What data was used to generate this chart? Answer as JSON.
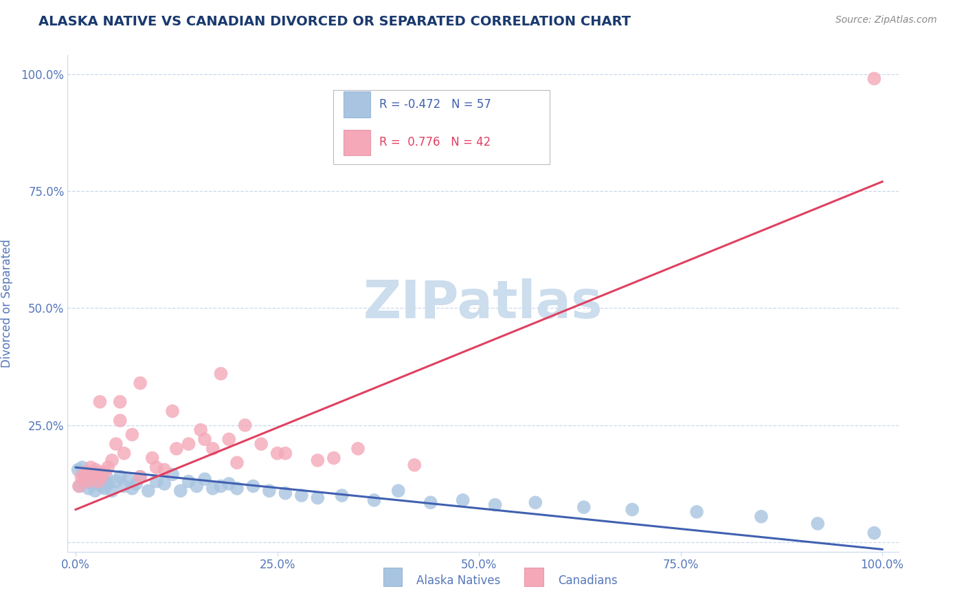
{
  "title": "ALASKA NATIVE VS CANADIAN DIVORCED OR SEPARATED CORRELATION CHART",
  "source_text": "Source: ZipAtlas.com",
  "ylabel": "Divorced or Separated",
  "x_tick_vals": [
    0,
    25,
    50,
    75,
    100
  ],
  "y_tick_vals": [
    0,
    25,
    50,
    75,
    100
  ],
  "x_tick_labels": [
    "0.0%",
    "25.0%",
    "50.0%",
    "75.0%",
    "100.0%"
  ],
  "y_tick_labels": [
    "",
    "25.0%",
    "50.0%",
    "75.0%",
    "100.0%"
  ],
  "xlim": [
    -1,
    102
  ],
  "ylim": [
    -2,
    104
  ],
  "legend_labels": [
    "Alaska Natives",
    "Canadians"
  ],
  "blue_color": "#a8c4e0",
  "pink_color": "#f4a8b8",
  "blue_line_color": "#4060b0",
  "pink_line_color": "#e04060",
  "watermark": "ZIPatlas",
  "r_blue": -0.472,
  "n_blue": 57,
  "r_pink": 0.776,
  "n_pink": 42,
  "blue_scatter_x": [
    0.3,
    0.5,
    0.8,
    1.0,
    1.2,
    1.4,
    1.6,
    1.8,
    2.0,
    2.2,
    2.4,
    2.6,
    2.8,
    3.0,
    3.2,
    3.4,
    3.6,
    3.8,
    4.0,
    4.5,
    5.0,
    5.5,
    6.0,
    6.5,
    7.0,
    7.5,
    8.0,
    9.0,
    10.0,
    11.0,
    12.0,
    13.0,
    14.0,
    15.0,
    16.0,
    17.0,
    18.0,
    19.0,
    20.0,
    22.0,
    24.0,
    26.0,
    28.0,
    30.0,
    33.0,
    37.0,
    40.0,
    44.0,
    48.0,
    52.0,
    57.0,
    63.0,
    69.0,
    77.0,
    85.0,
    92.0,
    99.0
  ],
  "blue_scatter_y": [
    15.5,
    12.0,
    16.0,
    14.0,
    13.0,
    15.0,
    11.5,
    14.5,
    12.5,
    13.5,
    11.0,
    15.0,
    13.0,
    14.0,
    12.0,
    13.5,
    11.5,
    14.0,
    12.5,
    11.0,
    13.0,
    14.0,
    12.0,
    13.5,
    11.5,
    12.5,
    14.0,
    11.0,
    13.0,
    12.5,
    14.5,
    11.0,
    13.0,
    12.0,
    13.5,
    11.5,
    12.0,
    12.5,
    11.5,
    12.0,
    11.0,
    10.5,
    10.0,
    9.5,
    10.0,
    9.0,
    11.0,
    8.5,
    9.0,
    8.0,
    8.5,
    7.5,
    7.0,
    6.5,
    5.5,
    4.0,
    2.0
  ],
  "pink_scatter_x": [
    0.4,
    0.7,
    1.0,
    1.3,
    1.6,
    1.9,
    2.2,
    2.5,
    2.8,
    3.2,
    3.6,
    4.0,
    4.5,
    5.0,
    5.5,
    6.0,
    7.0,
    8.0,
    9.5,
    11.0,
    12.5,
    14.0,
    15.5,
    17.0,
    19.0,
    21.0,
    23.0,
    26.0,
    30.0,
    35.0,
    3.0,
    5.5,
    8.0,
    12.0,
    16.0,
    20.0,
    25.0,
    32.0,
    42.0,
    99.0,
    10.0,
    18.0
  ],
  "pink_scatter_y": [
    12.0,
    14.0,
    13.5,
    15.0,
    13.0,
    16.0,
    14.5,
    15.5,
    13.0,
    14.0,
    15.0,
    16.0,
    17.5,
    21.0,
    26.0,
    19.0,
    23.0,
    14.0,
    18.0,
    15.5,
    20.0,
    21.0,
    24.0,
    20.0,
    22.0,
    25.0,
    21.0,
    19.0,
    17.5,
    20.0,
    30.0,
    30.0,
    34.0,
    28.0,
    22.0,
    17.0,
    19.0,
    18.0,
    16.5,
    99.0,
    16.0,
    36.0
  ],
  "blue_line_x0": 0,
  "blue_line_x1": 100,
  "blue_line_y0": 16.0,
  "blue_line_y1": -1.5,
  "pink_line_x0": 0,
  "pink_line_x1": 100,
  "pink_line_y0": 7.0,
  "pink_line_y1": 77.0,
  "title_color": "#1a3a6e",
  "axis_color": "#5577bb",
  "tick_label_color": "#5577bb",
  "grid_color": "#c8d8ee",
  "watermark_color": "#ccdded",
  "source_color": "#888888"
}
